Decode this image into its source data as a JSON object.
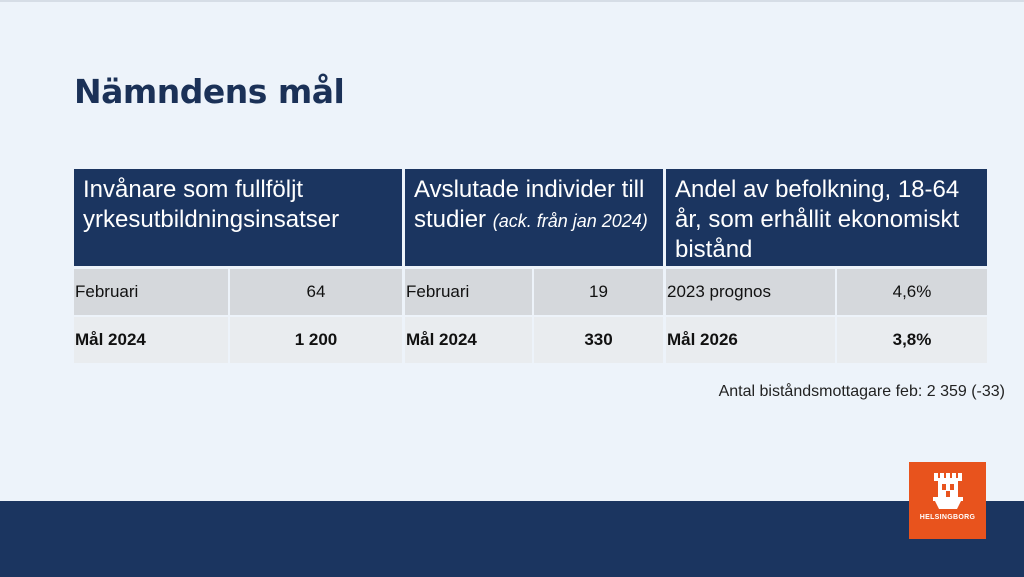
{
  "slide": {
    "title": "Nämndens mål"
  },
  "goals": [
    {
      "header": "Invånare som fullföljt yrkesutbildningsinsatser",
      "header_note": "",
      "rows": [
        {
          "label": "Februari",
          "value": "64"
        },
        {
          "label": "Mål 2024",
          "value": "1 200"
        }
      ]
    },
    {
      "header": "Avslutade individer till studier",
      "header_note": "(ack. från jan 2024)",
      "rows": [
        {
          "label": "Februari",
          "value": "19"
        },
        {
          "label": "Mål 2024",
          "value": "330"
        }
      ]
    },
    {
      "header": "Andel av befolkning, 18-64 år, som erhållit ekonomiskt bistånd",
      "header_note": "",
      "rows": [
        {
          "label": "2023 prognos",
          "value": "4,6%"
        },
        {
          "label": "Mål 2026",
          "value": "3,8%"
        }
      ]
    }
  ],
  "footnote": "Antal biståndsmottagare feb: 2 359 (-33)",
  "logo": {
    "text": "HELSINGBORG",
    "icon": "castle-crest-icon",
    "color": "#e8531d"
  },
  "colors": {
    "header_bg": "#1b3560",
    "title": "#1b3157",
    "background": "#edf3fa"
  }
}
